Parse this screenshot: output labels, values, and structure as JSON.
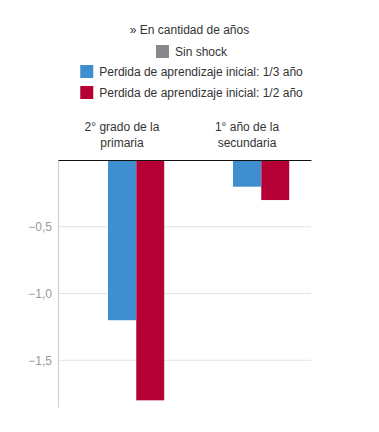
{
  "chart_data": {
    "type": "bar",
    "subtitle": "» En cantidad de años",
    "categories": [
      "2° grado de la primaria",
      "1° año de la secundaria"
    ],
    "series": [
      {
        "name": "Sin shock",
        "color": "#888888",
        "values": [
          0,
          0
        ]
      },
      {
        "name": "Perdida de aprendizaje inicial: 1/3 año",
        "color": "#3e8ed0",
        "values": [
          -1.2,
          -0.2
        ]
      },
      {
        "name": "Perdida de aprendizaje inicial: 1/2 año",
        "color": "#b40034",
        "values": [
          -1.8,
          -0.3
        ]
      }
    ],
    "ylim": [
      -1.85,
      0
    ],
    "yticks": [
      {
        "value": -0.5,
        "label": "−0,5"
      },
      {
        "value": -1.0,
        "label": "−1,0"
      },
      {
        "value": -1.5,
        "label": "−1,5"
      }
    ],
    "grid": true,
    "legend": "top"
  }
}
